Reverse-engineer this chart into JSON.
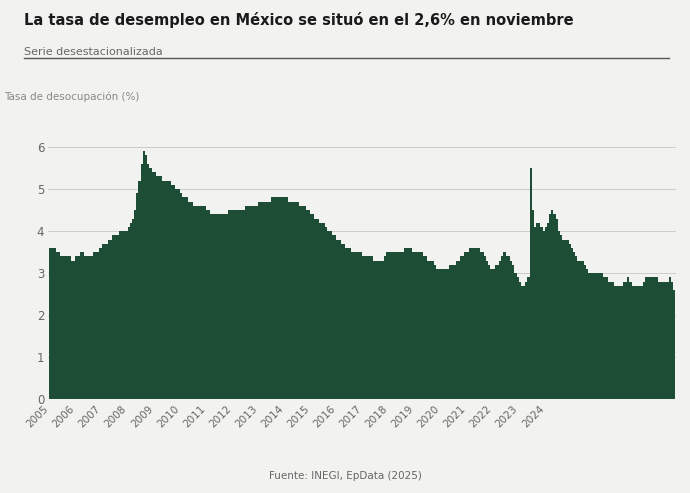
{
  "title": "La tasa de desempleo en México se situó en el 2,6% en noviembre",
  "subtitle": "Serie desestacionalizada",
  "ylabel": "Tasa de desocupación (%)",
  "source": "Fuente: INEGI, EpData (2025)",
  "bar_color": "#1e4d35",
  "background_color": "#f2f2f0",
  "plot_bg_color": "#f2f2f0",
  "ylim": [
    0,
    6.8
  ],
  "yticks": [
    0,
    1,
    2,
    3,
    4,
    5,
    6
  ],
  "values": [
    3.6,
    3.6,
    3.6,
    3.5,
    3.5,
    3.4,
    3.4,
    3.4,
    3.4,
    3.4,
    3.3,
    3.3,
    3.4,
    3.4,
    3.5,
    3.5,
    3.4,
    3.4,
    3.4,
    3.4,
    3.5,
    3.5,
    3.5,
    3.6,
    3.7,
    3.7,
    3.7,
    3.8,
    3.8,
    3.9,
    3.9,
    3.9,
    4.0,
    4.0,
    4.0,
    4.0,
    4.1,
    4.2,
    4.3,
    4.5,
    4.9,
    5.2,
    5.6,
    5.9,
    5.8,
    5.6,
    5.5,
    5.4,
    5.4,
    5.3,
    5.3,
    5.3,
    5.2,
    5.2,
    5.2,
    5.2,
    5.1,
    5.1,
    5.0,
    5.0,
    4.9,
    4.8,
    4.8,
    4.8,
    4.7,
    4.7,
    4.6,
    4.6,
    4.6,
    4.6,
    4.6,
    4.6,
    4.5,
    4.5,
    4.4,
    4.4,
    4.4,
    4.4,
    4.4,
    4.4,
    4.4,
    4.4,
    4.5,
    4.5,
    4.5,
    4.5,
    4.5,
    4.5,
    4.5,
    4.5,
    4.6,
    4.6,
    4.6,
    4.6,
    4.6,
    4.6,
    4.7,
    4.7,
    4.7,
    4.7,
    4.7,
    4.7,
    4.8,
    4.8,
    4.8,
    4.8,
    4.8,
    4.8,
    4.8,
    4.8,
    4.7,
    4.7,
    4.7,
    4.7,
    4.7,
    4.6,
    4.6,
    4.6,
    4.5,
    4.5,
    4.4,
    4.4,
    4.3,
    4.3,
    4.2,
    4.2,
    4.2,
    4.1,
    4.0,
    4.0,
    3.9,
    3.9,
    3.8,
    3.8,
    3.7,
    3.7,
    3.6,
    3.6,
    3.6,
    3.5,
    3.5,
    3.5,
    3.5,
    3.5,
    3.4,
    3.4,
    3.4,
    3.4,
    3.4,
    3.3,
    3.3,
    3.3,
    3.3,
    3.3,
    3.4,
    3.5,
    3.5,
    3.5,
    3.5,
    3.5,
    3.5,
    3.5,
    3.5,
    3.6,
    3.6,
    3.6,
    3.6,
    3.5,
    3.5,
    3.5,
    3.5,
    3.5,
    3.4,
    3.4,
    3.3,
    3.3,
    3.3,
    3.2,
    3.1,
    3.1,
    3.1,
    3.1,
    3.1,
    3.1,
    3.2,
    3.2,
    3.2,
    3.3,
    3.3,
    3.4,
    3.4,
    3.5,
    3.5,
    3.6,
    3.6,
    3.6,
    3.6,
    3.6,
    3.5,
    3.5,
    3.4,
    3.3,
    3.2,
    3.1,
    3.1,
    3.2,
    3.2,
    3.3,
    3.4,
    3.5,
    3.4,
    3.4,
    3.3,
    3.2,
    3.0,
    2.9,
    2.8,
    2.7,
    2.7,
    2.8,
    2.9,
    5.5,
    4.5,
    4.1,
    4.2,
    4.2,
    4.1,
    4.0,
    4.1,
    4.2,
    4.4,
    4.5,
    4.4,
    4.3,
    4.0,
    3.9,
    3.8,
    3.8,
    3.8,
    3.7,
    3.6,
    3.5,
    3.4,
    3.3,
    3.3,
    3.3,
    3.2,
    3.1,
    3.0,
    3.0,
    3.0,
    3.0,
    3.0,
    3.0,
    3.0,
    2.9,
    2.9,
    2.8,
    2.8,
    2.8,
    2.7,
    2.7,
    2.7,
    2.7,
    2.8,
    2.8,
    2.9,
    2.8,
    2.7,
    2.7,
    2.7,
    2.7,
    2.7,
    2.8,
    2.9,
    2.9,
    2.9,
    2.9,
    2.9,
    2.9,
    2.8,
    2.8,
    2.8,
    2.8,
    2.8,
    2.9,
    2.8,
    2.6
  ],
  "start_year": 2005,
  "start_month": 1,
  "xtick_years": [
    2005,
    2006,
    2007,
    2008,
    2009,
    2010,
    2011,
    2012,
    2013,
    2014,
    2015,
    2016,
    2017,
    2018,
    2019,
    2020,
    2021,
    2022,
    2023,
    2024
  ]
}
